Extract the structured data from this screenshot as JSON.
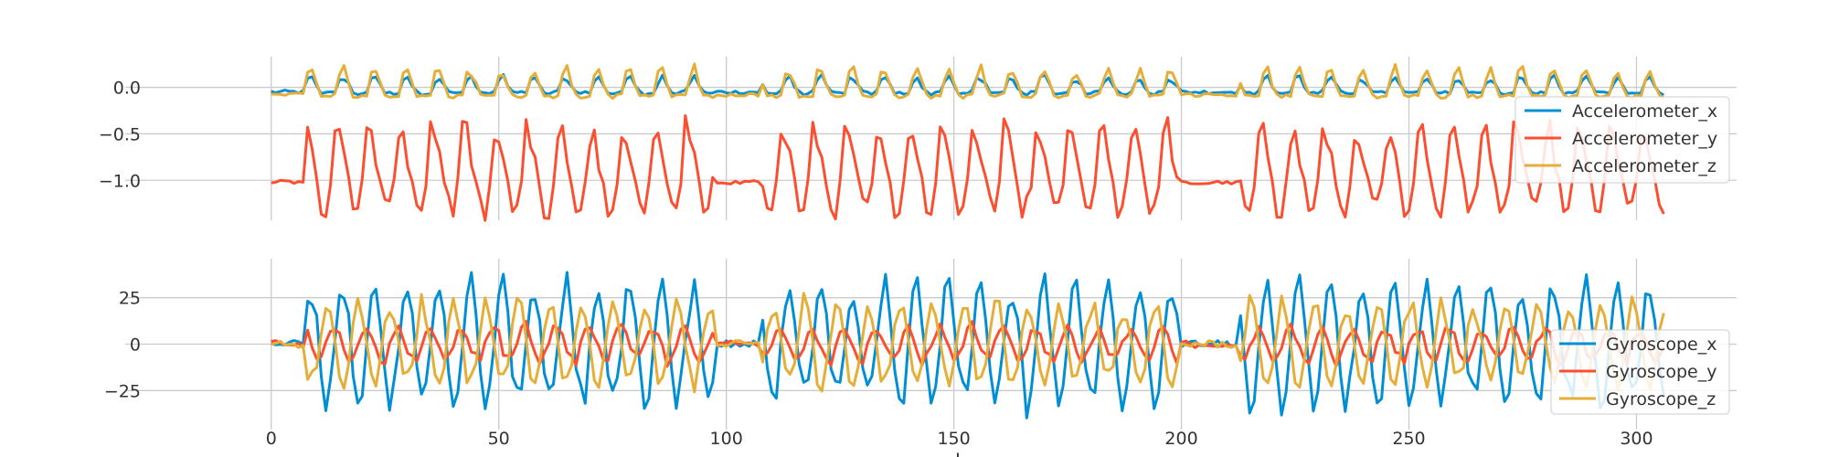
{
  "colors": {
    "blue": "#008fd5",
    "red": "#fc4f30",
    "yellow": "#e5ae38",
    "grid": "#cbcbcb",
    "background": "#ffffff"
  },
  "chart_data": [
    {
      "type": "line",
      "panel": "accelerometer",
      "xlim": [
        -12,
        322
      ],
      "ylim": [
        -1.43,
        0.33
      ],
      "xticks": [
        0,
        50,
        100,
        150,
        200,
        250,
        300
      ],
      "yticks": [
        0.0,
        -0.5,
        -1.0
      ],
      "ytick_labels": [
        "0.0",
        "−0.5",
        "−1.0"
      ],
      "xtick_labels": [],
      "xlabel": "",
      "ylabel": "",
      "grid": true,
      "legend_position": "right",
      "samples": 307,
      "walking_segments": [
        [
          8,
          98
        ],
        [
          108,
          200
        ],
        [
          213,
          307
        ]
      ],
      "period_samples": 7,
      "series": [
        {
          "name": "Accelerometer_x",
          "color": "#008fd5",
          "rest_level": -0.05,
          "peak_level": 0.1,
          "trough_level": -0.08
        },
        {
          "name": "Accelerometer_y",
          "color": "#fc4f30",
          "rest_level": -1.02,
          "peak_level": -0.45,
          "trough_level": -1.35
        },
        {
          "name": "Accelerometer_z",
          "color": "#e5ae38",
          "rest_level": -0.08,
          "peak_level": 0.18,
          "trough_level": -0.12
        }
      ]
    },
    {
      "type": "line",
      "panel": "gyroscope",
      "xlim": [
        -12,
        322
      ],
      "ylim": [
        -46,
        46
      ],
      "xticks": [
        0,
        50,
        100,
        150,
        200,
        250,
        300
      ],
      "yticks": [
        25,
        0,
        -25
      ],
      "ytick_labels": [
        "25",
        "0",
        "−25"
      ],
      "xtick_labels": [
        "0",
        "50",
        "100",
        "150",
        "200",
        "250",
        "300"
      ],
      "xlabel": "samples",
      "ylabel": "",
      "grid": true,
      "legend_position": "bottom-right",
      "samples": 307,
      "walking_segments": [
        [
          8,
          98
        ],
        [
          108,
          200
        ],
        [
          213,
          307
        ]
      ],
      "period_samples": 7,
      "series": [
        {
          "name": "Gyroscope_x",
          "color": "#008fd5",
          "amplitude": 32
        },
        {
          "name": "Gyroscope_y",
          "color": "#fc4f30",
          "amplitude": 9
        },
        {
          "name": "Gyroscope_z",
          "color": "#e5ae38",
          "amplitude": 22
        }
      ]
    }
  ]
}
